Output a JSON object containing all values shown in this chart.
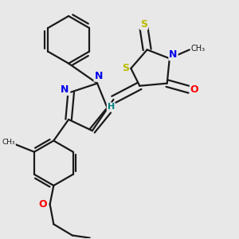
{
  "background_color": "#e8e8e8",
  "bond_color": "#1a1a1a",
  "bond_width": 1.6,
  "atom_colors": {
    "N": "#0000ee",
    "S": "#bbbb00",
    "O": "#ff0000",
    "H": "#008080",
    "C": "#1a1a1a"
  },
  "figsize": [
    3.0,
    3.0
  ],
  "dpi": 100
}
